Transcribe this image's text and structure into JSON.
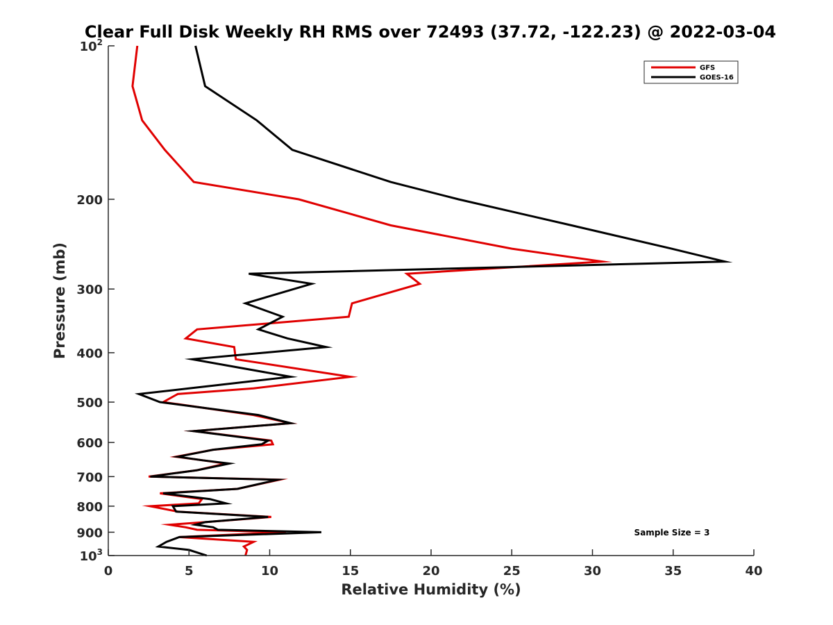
{
  "chart_data": {
    "type": "line",
    "title": "Clear Full Disk Weekly RH RMS over 72493 (37.72, -122.23) @ 2022-03-04",
    "xlabel": "Relative Humidity (%)",
    "ylabel": "Pressure (mb)",
    "xlim": [
      0,
      40
    ],
    "ylim": [
      100,
      1000
    ],
    "y_scale": "log",
    "y_reversed": true,
    "x_ticks": [
      0,
      5,
      10,
      15,
      20,
      25,
      30,
      35,
      40
    ],
    "y_ticks": [
      {
        "value": 100,
        "label": "10",
        "exp": "2"
      },
      {
        "value": 200,
        "label": "200"
      },
      {
        "value": 300,
        "label": "300"
      },
      {
        "value": 400,
        "label": "400"
      },
      {
        "value": 500,
        "label": "500"
      },
      {
        "value": 600,
        "label": "600"
      },
      {
        "value": 700,
        "label": "700"
      },
      {
        "value": 800,
        "label": "800"
      },
      {
        "value": 900,
        "label": "900"
      },
      {
        "value": 1000,
        "label": "10",
        "exp": "3"
      }
    ],
    "grid": false,
    "legend_position": "top-right",
    "annotation": "Sample Size = 3",
    "series": [
      {
        "name": "GFS",
        "color": "#e00000",
        "points": [
          [
            1.8,
            100
          ],
          [
            1.5,
            120
          ],
          [
            2.1,
            140
          ],
          [
            3.5,
            160
          ],
          [
            5.3,
            185
          ],
          [
            11.8,
            200
          ],
          [
            17.5,
            225
          ],
          [
            25.0,
            250
          ],
          [
            30.6,
            265
          ],
          [
            18.5,
            280
          ],
          [
            19.3,
            293
          ],
          [
            15.1,
            320
          ],
          [
            14.9,
            340
          ],
          [
            5.5,
            360
          ],
          [
            4.8,
            375
          ],
          [
            7.8,
            390
          ],
          [
            7.9,
            412
          ],
          [
            15.0,
            446
          ],
          [
            9.0,
            470
          ],
          [
            4.3,
            482
          ],
          [
            3.4,
            500
          ],
          [
            9.0,
            530
          ],
          [
            11.3,
            550
          ],
          [
            5.3,
            570
          ],
          [
            10.1,
            595
          ],
          [
            10.2,
            605
          ],
          [
            6.5,
            620
          ],
          [
            4.2,
            640
          ],
          [
            5.8,
            650
          ],
          [
            7.3,
            660
          ],
          [
            5.5,
            680
          ],
          [
            2.5,
            700
          ],
          [
            10.6,
            710
          ],
          [
            8.0,
            740
          ],
          [
            3.2,
            755
          ],
          [
            5.8,
            775
          ],
          [
            5.6,
            790
          ],
          [
            2.6,
            800
          ],
          [
            4.3,
            820
          ],
          [
            10.1,
            840
          ],
          [
            6.0,
            860
          ],
          [
            3.8,
            870
          ],
          [
            4.8,
            880
          ],
          [
            5.5,
            890
          ],
          [
            11.0,
            900
          ],
          [
            4.4,
            920
          ],
          [
            9.0,
            940
          ],
          [
            8.4,
            960
          ],
          [
            8.6,
            975
          ],
          [
            8.5,
            1000
          ]
        ]
      },
      {
        "name": "GOES-16",
        "color": "#000000",
        "points": [
          [
            5.4,
            100
          ],
          [
            6.0,
            120
          ],
          [
            9.2,
            140
          ],
          [
            11.4,
            160
          ],
          [
            17.5,
            185
          ],
          [
            21.7,
            200
          ],
          [
            28.7,
            225
          ],
          [
            34.9,
            250
          ],
          [
            38.2,
            265
          ],
          [
            8.7,
            280
          ],
          [
            12.6,
            293
          ],
          [
            8.5,
            320
          ],
          [
            10.8,
            340
          ],
          [
            9.3,
            360
          ],
          [
            11.1,
            375
          ],
          [
            13.5,
            390
          ],
          [
            5.2,
            412
          ],
          [
            11.3,
            446
          ],
          [
            5.0,
            470
          ],
          [
            1.9,
            482
          ],
          [
            3.2,
            500
          ],
          [
            9.3,
            530
          ],
          [
            11.3,
            550
          ],
          [
            5.3,
            570
          ],
          [
            9.9,
            595
          ],
          [
            9.5,
            605
          ],
          [
            6.5,
            620
          ],
          [
            4.3,
            640
          ],
          [
            5.8,
            650
          ],
          [
            7.5,
            660
          ],
          [
            5.5,
            680
          ],
          [
            2.6,
            700
          ],
          [
            10.5,
            710
          ],
          [
            8.0,
            740
          ],
          [
            3.4,
            755
          ],
          [
            6.3,
            775
          ],
          [
            7.3,
            790
          ],
          [
            4.0,
            800
          ],
          [
            4.2,
            820
          ],
          [
            9.9,
            840
          ],
          [
            6.0,
            860
          ],
          [
            5.4,
            870
          ],
          [
            6.5,
            880
          ],
          [
            6.8,
            890
          ],
          [
            13.2,
            900
          ],
          [
            4.4,
            920
          ],
          [
            3.6,
            940
          ],
          [
            3.1,
            960
          ],
          [
            5.0,
            975
          ],
          [
            6.1,
            1000
          ]
        ]
      }
    ]
  }
}
